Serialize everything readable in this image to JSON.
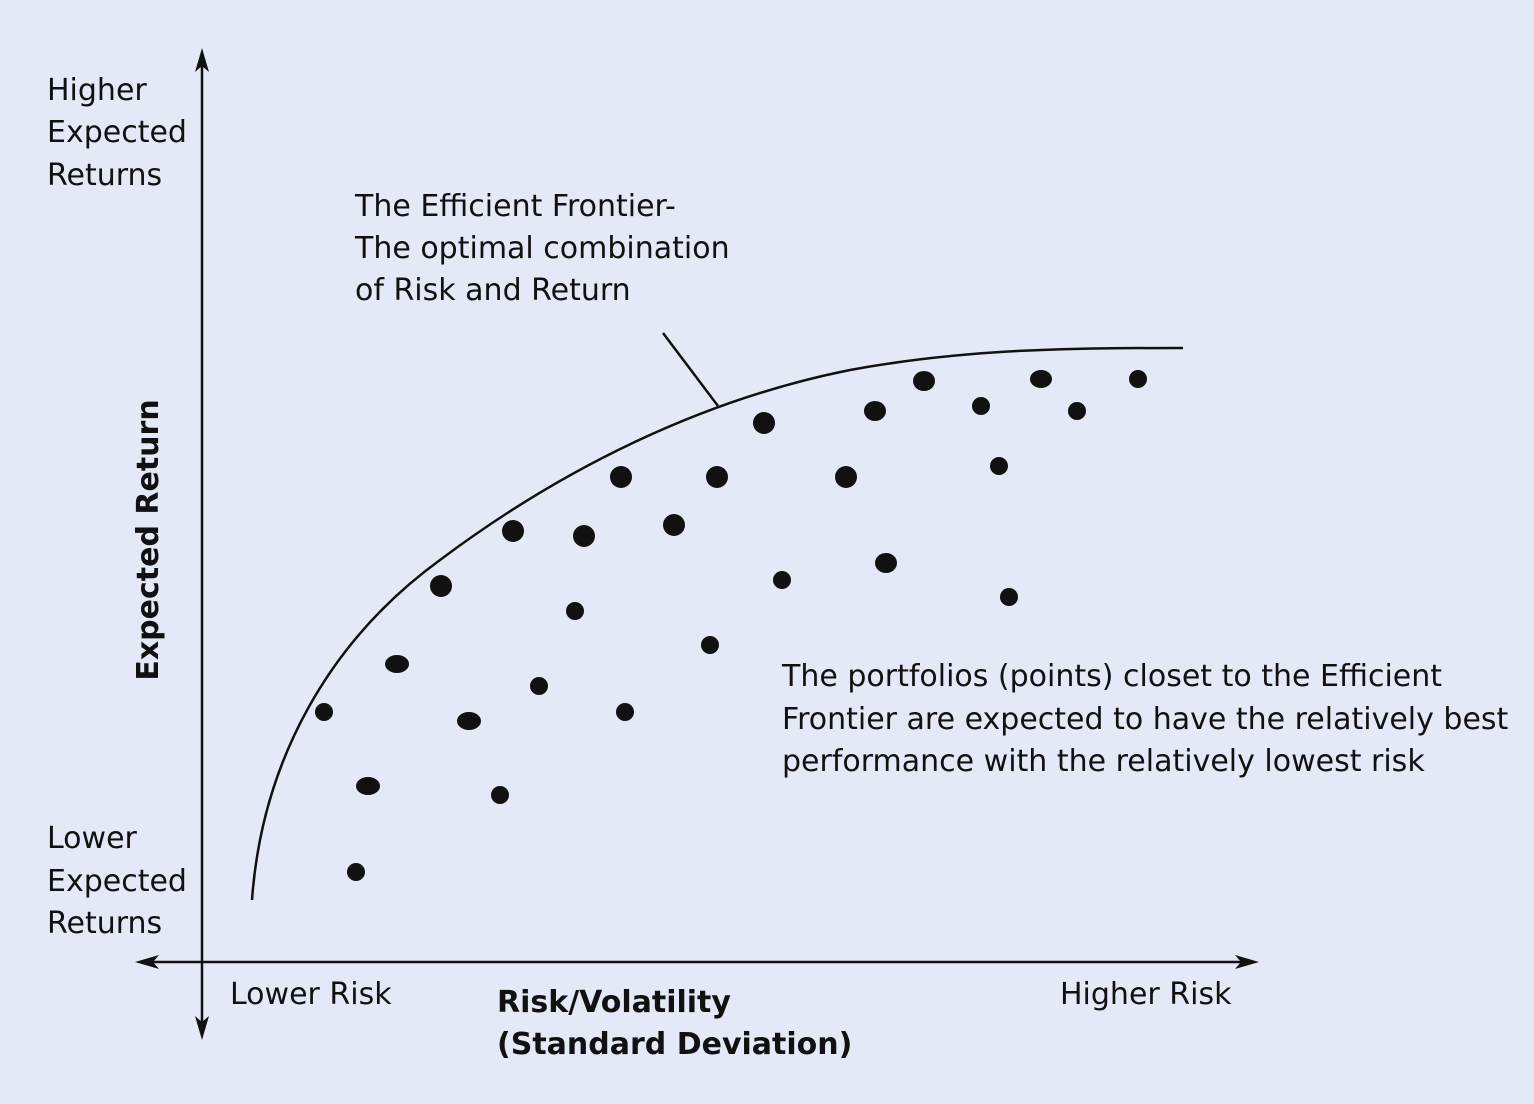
{
  "y_axis": {
    "title": "Expected Return",
    "top_label": [
      "Higher",
      "Expected",
      "Returns"
    ],
    "bottom_label": [
      "Lower",
      "Expected",
      "Returns"
    ]
  },
  "x_axis": {
    "title": [
      "Risk/Volatility",
      "(Standard Deviation)"
    ],
    "left_label": "Lower Risk",
    "right_label": "Higher Risk"
  },
  "annotations": {
    "frontier": [
      "The Efficient Frontier-",
      "The optimal combination",
      "of Risk and Return"
    ],
    "portfolios": [
      "The portfolios (points) closet to the Efficient",
      "Frontier are expected to have the relatively best",
      "performance with the relatively lowest risk"
    ]
  }
}
